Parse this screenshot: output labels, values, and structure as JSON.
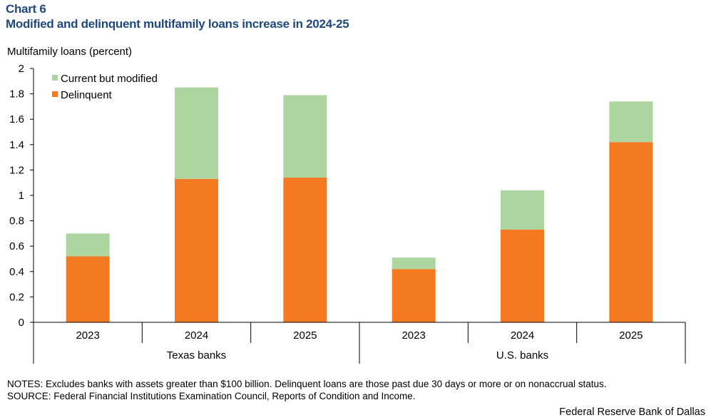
{
  "header": {
    "chart_label": "Chart 6",
    "title": "Modified and delinquent multifamily loans increase in 2024-25"
  },
  "notes": {
    "notes_line": "NOTES: Excludes banks with assets greater than $100 billion. Delinquent loans are those past due 30 days or more or on nonaccrual status.",
    "source_line": "SOURCE: Federal Financial Institutions Examination Council, Reports of Condition and Income."
  },
  "credit": "Federal Reserve Bank of Dallas",
  "chart_data": {
    "type": "bar",
    "stacked": true,
    "title": "Modified and delinquent multifamily loans increase in 2024-25",
    "ylabel": "Multifamily  loans  (percent)",
    "xlabel": "",
    "ylim": [
      0,
      2
    ],
    "yticks": [
      "0",
      "0.2",
      "0.4",
      "0.6",
      "0.8",
      "1",
      "1.2",
      "1.4",
      "1.6",
      "1.8",
      "2"
    ],
    "grid": false,
    "legend_position": "top-left",
    "groups": [
      {
        "name": "Texas banks",
        "categories": [
          "2023",
          "2024",
          "2025"
        ]
      },
      {
        "name": "U.S. banks",
        "categories": [
          "2023",
          "2024",
          "2025"
        ]
      }
    ],
    "categories": [
      "2023",
      "2024",
      "2025",
      "2023",
      "2024",
      "2025"
    ],
    "series": [
      {
        "name": "Delinquent",
        "color": "#f47920",
        "values": [
          0.52,
          1.13,
          1.14,
          0.42,
          0.73,
          1.42
        ]
      },
      {
        "name": "Current but modified",
        "color": "#acd59f",
        "values": [
          0.18,
          0.72,
          0.65,
          0.09,
          0.31,
          0.32
        ]
      }
    ],
    "legend_order": [
      "Current but modified",
      "Delinquent"
    ]
  }
}
